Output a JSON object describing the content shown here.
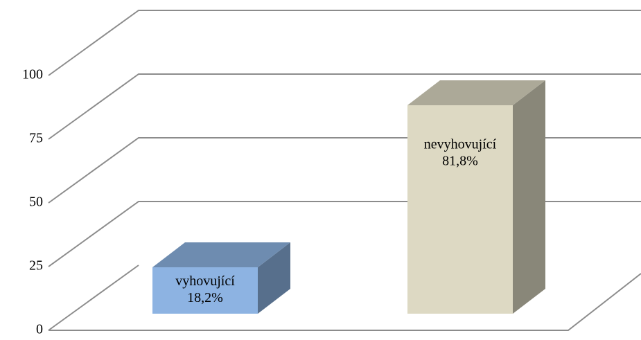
{
  "chart_data": {
    "type": "bar3d",
    "categories": [
      "vyhovující",
      "nevyhovující"
    ],
    "values": [
      18.2,
      81.8
    ],
    "value_labels": [
      "18,2%",
      "81,8%"
    ],
    "colors": [
      "#8db3e2",
      "#ddd9c3"
    ],
    "ylim": [
      0,
      100
    ],
    "yticks": [
      0,
      25,
      50,
      75,
      100
    ],
    "grid": true
  }
}
